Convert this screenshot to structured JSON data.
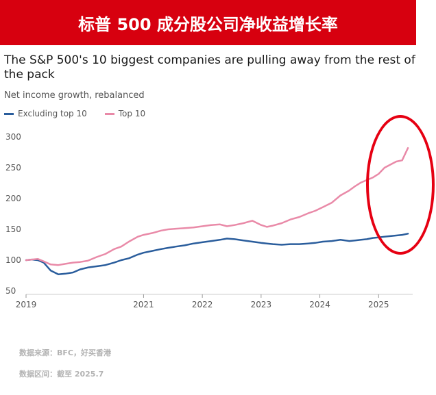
{
  "banner": {
    "title": "标普 500 成分股公司净收益增长率"
  },
  "source": {
    "line1": "数据来源：BFC，好买香港",
    "line2": "数据区间：截至 2025.7"
  },
  "colors": {
    "banner": "#d7000f",
    "excluding": "#2a5d9c",
    "top10": "#e98aa8",
    "highlight": "#e60012"
  },
  "chart_data": {
    "type": "line",
    "title": "The S&P 500's 10 biggest companies are pulling away from the rest of the pack",
    "subtitle": "Net income growth, rebalanced",
    "legend_position": "top-left",
    "grid": false,
    "xlabel": "",
    "ylabel": "",
    "xlim": [
      2019,
      2025.58
    ],
    "ylim": [
      50,
      300
    ],
    "yticks": [
      50,
      100,
      150,
      200,
      250,
      300
    ],
    "xticks": [
      2019,
      2021,
      2022,
      2023,
      2024,
      2025
    ],
    "series": [
      {
        "name": "Excluding top 10",
        "color": "#2a5d9c",
        "x": [
          2019.0,
          2019.1,
          2019.2,
          2019.3,
          2019.42,
          2019.55,
          2019.67,
          2019.8,
          2019.92,
          2020.05,
          2020.2,
          2020.35,
          2020.5,
          2020.62,
          2020.75,
          2020.9,
          2021.0,
          2021.15,
          2021.3,
          2021.42,
          2021.55,
          2021.7,
          2021.85,
          2022.0,
          2022.15,
          2022.3,
          2022.42,
          2022.55,
          2022.7,
          2022.85,
          2023.0,
          2023.1,
          2023.2,
          2023.35,
          2023.5,
          2023.65,
          2023.8,
          2023.92,
          2024.05,
          2024.2,
          2024.35,
          2024.5,
          2024.6,
          2024.7,
          2024.8,
          2024.9,
          2025.0,
          2025.1,
          2025.2,
          2025.3,
          2025.4,
          2025.5
        ],
        "values": [
          100,
          101,
          100,
          96,
          83,
          77,
          78,
          80,
          85,
          88,
          90,
          92,
          96,
          100,
          103,
          109,
          112,
          115,
          118,
          120,
          122,
          124,
          127,
          129,
          131,
          133,
          135,
          134,
          132,
          130,
          128,
          127,
          126,
          125,
          126,
          126,
          127,
          128,
          130,
          131,
          133,
          131,
          132,
          133,
          134,
          136,
          137,
          138,
          139,
          140,
          141,
          143
        ]
      },
      {
        "name": "Top 10",
        "color": "#e98aa8",
        "x": [
          2019.0,
          2019.1,
          2019.2,
          2019.3,
          2019.42,
          2019.55,
          2019.67,
          2019.8,
          2019.92,
          2020.05,
          2020.2,
          2020.35,
          2020.5,
          2020.62,
          2020.75,
          2020.9,
          2021.0,
          2021.15,
          2021.3,
          2021.42,
          2021.55,
          2021.7,
          2021.85,
          2022.0,
          2022.15,
          2022.3,
          2022.42,
          2022.55,
          2022.7,
          2022.85,
          2023.0,
          2023.1,
          2023.2,
          2023.35,
          2023.5,
          2023.65,
          2023.8,
          2023.92,
          2024.05,
          2024.2,
          2024.35,
          2024.5,
          2024.6,
          2024.7,
          2024.8,
          2024.9,
          2025.0,
          2025.1,
          2025.2,
          2025.3,
          2025.4,
          2025.5
        ],
        "values": [
          100,
          101,
          102,
          98,
          93,
          92,
          94,
          96,
          97,
          99,
          105,
          110,
          118,
          122,
          130,
          138,
          141,
          144,
          148,
          150,
          151,
          152,
          153,
          155,
          157,
          158,
          155,
          157,
          160,
          164,
          157,
          154,
          156,
          160,
          166,
          170,
          176,
          180,
          186,
          193,
          205,
          213,
          220,
          226,
          230,
          234,
          240,
          250,
          255,
          260,
          262,
          282
        ]
      }
    ]
  }
}
